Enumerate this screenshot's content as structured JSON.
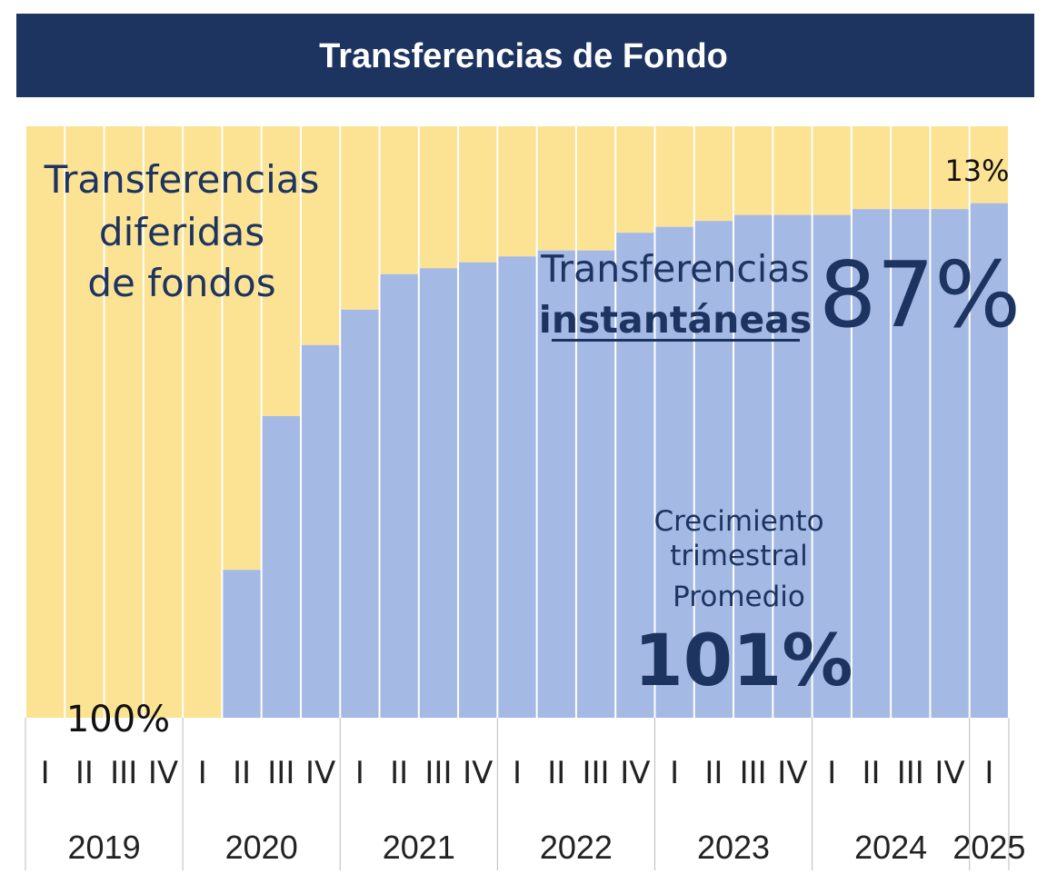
{
  "title": "Transferencias de Fondo",
  "chart_data": {
    "type": "bar",
    "stacked": true,
    "percent_stacked": true,
    "ylim": [
      0,
      100
    ],
    "grid": false,
    "categories": [
      {
        "quarter": "I",
        "year": "2019"
      },
      {
        "quarter": "II",
        "year": "2019"
      },
      {
        "quarter": "III",
        "year": "2019"
      },
      {
        "quarter": "IV",
        "year": "2019"
      },
      {
        "quarter": "I",
        "year": "2020"
      },
      {
        "quarter": "II",
        "year": "2020"
      },
      {
        "quarter": "III",
        "year": "2020"
      },
      {
        "quarter": "IV",
        "year": "2020"
      },
      {
        "quarter": "I",
        "year": "2021"
      },
      {
        "quarter": "II",
        "year": "2021"
      },
      {
        "quarter": "III",
        "year": "2021"
      },
      {
        "quarter": "IV",
        "year": "2021"
      },
      {
        "quarter": "I",
        "year": "2022"
      },
      {
        "quarter": "II",
        "year": "2022"
      },
      {
        "quarter": "III",
        "year": "2022"
      },
      {
        "quarter": "IV",
        "year": "2022"
      },
      {
        "quarter": "I",
        "year": "2023"
      },
      {
        "quarter": "II",
        "year": "2023"
      },
      {
        "quarter": "III",
        "year": "2023"
      },
      {
        "quarter": "IV",
        "year": "2023"
      },
      {
        "quarter": "I",
        "year": "2024"
      },
      {
        "quarter": "II",
        "year": "2024"
      },
      {
        "quarter": "III",
        "year": "2024"
      },
      {
        "quarter": "IV",
        "year": "2024"
      },
      {
        "quarter": "I",
        "year": "2025"
      }
    ],
    "years": [
      "2019",
      "2020",
      "2021",
      "2022",
      "2023",
      "2024",
      "2025"
    ],
    "series": [
      {
        "name": "Transferencias instantáneas",
        "color": "#a4b9e3",
        "values": [
          0,
          0,
          0,
          0,
          0,
          25,
          51,
          63,
          69,
          75,
          76,
          77,
          78,
          79,
          79,
          82,
          83,
          84,
          85,
          85,
          85,
          86,
          86,
          86,
          87
        ]
      },
      {
        "name": "Transferencias diferidas de fondos",
        "color": "#fce293",
        "values": [
          100,
          100,
          100,
          100,
          100,
          75,
          49,
          37,
          31,
          25,
          24,
          23,
          22,
          21,
          21,
          18,
          17,
          16,
          15,
          15,
          15,
          14,
          14,
          14,
          13
        ]
      }
    ],
    "annotations": {
      "deferred_label_lines": [
        "Transferencias",
        "diferidas",
        "de fondos"
      ],
      "deferred_start_pct": "100%",
      "deferred_end_pct": "13%",
      "instant_label_line1": "Transferencias",
      "instant_label_line2": "instantáneas",
      "instant_end_pct": "87%",
      "growth_label_lines": [
        "Crecimiento",
        "trimestral",
        "Promedio"
      ],
      "growth_value": "101%"
    }
  },
  "colors": {
    "banner_bg": "#1d3461",
    "banner_text": "#ffffff",
    "annotation_text": "#1d3461",
    "plain_text": "#222222"
  }
}
